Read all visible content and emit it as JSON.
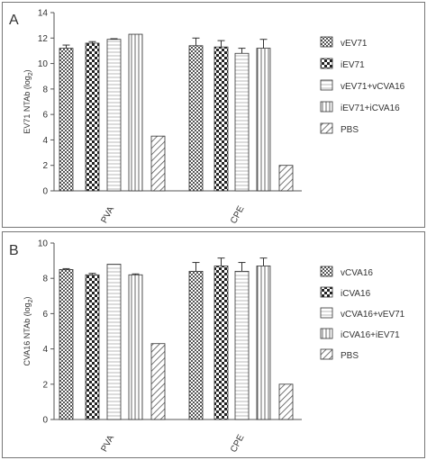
{
  "chart_data": [
    {
      "panel_letter": "A",
      "type": "bar",
      "categories": [
        "PVA",
        "CPE"
      ],
      "ylabel": "EV71 NTAb (log2)",
      "ylabel_main": "EV71  NTAb (log",
      "ylabel_sub": "2",
      "ylabel_close": ")",
      "ylim": [
        0,
        14
      ],
      "yticks": [
        0,
        2,
        4,
        6,
        8,
        10,
        12,
        14
      ],
      "grid": false,
      "legend_position": "right",
      "series": [
        {
          "name": "vEV71",
          "pattern": "checker-small",
          "values": [
            11.2,
            11.4
          ],
          "errors": [
            0.25,
            0.6
          ]
        },
        {
          "name": "iEV71",
          "pattern": "checker-large",
          "values": [
            11.6,
            11.3
          ],
          "errors": [
            0.12,
            0.5
          ]
        },
        {
          "name": "vEV71+vCVA16",
          "pattern": "hstripe",
          "values": [
            11.9,
            10.8
          ],
          "errors": [
            0.05,
            0.4
          ]
        },
        {
          "name": "iEV71+iCVA16",
          "pattern": "vstripe",
          "values": [
            12.3,
            11.2
          ],
          "errors": [
            0.0,
            0.7
          ]
        },
        {
          "name": "PBS",
          "pattern": "diag",
          "values": [
            4.3,
            2.0
          ],
          "errors": [
            0.0,
            0.0
          ]
        }
      ]
    },
    {
      "panel_letter": "B",
      "type": "bar",
      "categories": [
        "PVA",
        "CPE"
      ],
      "ylabel": "CVA16 NTAb (log2)",
      "ylabel_main": "CVA16  NTAb (log",
      "ylabel_sub": "2",
      "ylabel_close": ")",
      "ylim": [
        0,
        10
      ],
      "yticks": [
        0,
        2,
        4,
        6,
        8,
        10
      ],
      "grid": false,
      "legend_position": "right",
      "series": [
        {
          "name": "vCVA16",
          "pattern": "checker-small",
          "values": [
            8.5,
            8.4
          ],
          "errors": [
            0.05,
            0.5
          ]
        },
        {
          "name": "iCVA16",
          "pattern": "checker-large",
          "values": [
            8.2,
            8.7
          ],
          "errors": [
            0.08,
            0.45
          ]
        },
        {
          "name": "vCVA16+vEV71",
          "pattern": "hstripe",
          "values": [
            8.8,
            8.4
          ],
          "errors": [
            0.0,
            0.5
          ]
        },
        {
          "name": "iCVA16+iEV71",
          "pattern": "vstripe",
          "values": [
            8.2,
            8.7
          ],
          "errors": [
            0.05,
            0.45
          ]
        },
        {
          "name": "PBS",
          "pattern": "diag",
          "values": [
            4.3,
            2.0
          ],
          "errors": [
            0.0,
            0.0
          ]
        }
      ]
    }
  ]
}
